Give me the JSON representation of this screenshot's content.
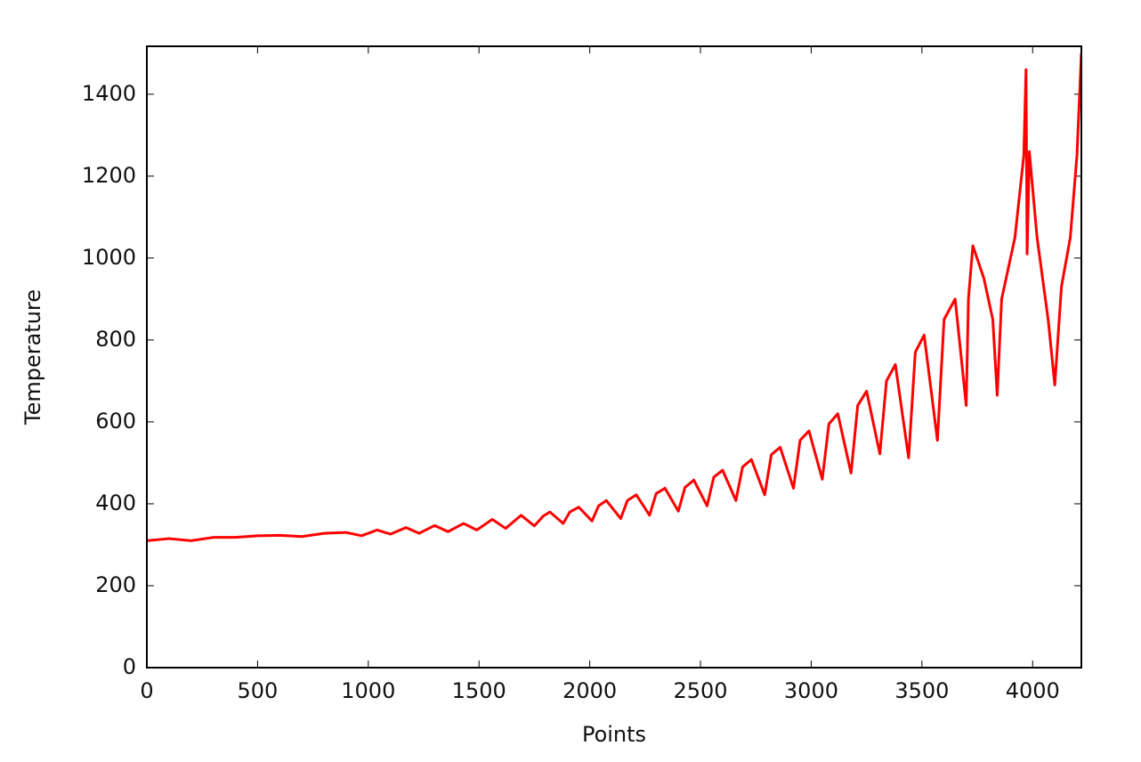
{
  "chart_data": {
    "type": "line",
    "x_label": "Points",
    "y_label": "Temperature",
    "x": [
      0,
      100,
      200,
      300,
      400,
      500,
      600,
      700,
      800,
      900,
      970,
      1040,
      1100,
      1170,
      1230,
      1300,
      1360,
      1430,
      1490,
      1560,
      1620,
      1690,
      1750,
      1790,
      1820,
      1880,
      1910,
      1950,
      2010,
      2040,
      2075,
      2140,
      2170,
      2210,
      2270,
      2300,
      2340,
      2400,
      2430,
      2470,
      2530,
      2560,
      2600,
      2660,
      2690,
      2730,
      2790,
      2820,
      2860,
      2920,
      2950,
      2990,
      3050,
      3080,
      3120,
      3180,
      3210,
      3250,
      3310,
      3340,
      3380,
      3440,
      3470,
      3510,
      3570,
      3600,
      3650,
      3700,
      3710,
      3730,
      3780,
      3820,
      3840,
      3860,
      3920,
      3960,
      3970,
      3975,
      3985,
      4020,
      4070,
      4100,
      4130,
      4170,
      4200,
      4220
    ],
    "series": [
      {
        "name": "Temperature",
        "color": "#ff0000",
        "values": [
          310,
          315,
          310,
          318,
          318,
          322,
          323,
          320,
          328,
          330,
          322,
          336,
          326,
          342,
          328,
          347,
          332,
          352,
          336,
          362,
          340,
          372,
          346,
          370,
          380,
          352,
          380,
          392,
          358,
          395,
          408,
          364,
          408,
          422,
          372,
          425,
          438,
          382,
          440,
          458,
          395,
          465,
          482,
          408,
          490,
          508,
          422,
          520,
          538,
          438,
          555,
          578,
          460,
          595,
          620,
          475,
          640,
          675,
          522,
          700,
          740,
          512,
          770,
          812,
          555,
          850,
          900,
          640,
          900,
          1030,
          950,
          850,
          665,
          900,
          1050,
          1250,
          1460,
          1010,
          1260,
          1050,
          850,
          690,
          930,
          1050,
          1250,
          1500
        ]
      }
    ],
    "xlim": [
      0,
      4220
    ],
    "ylim": [
      0,
      1517
    ],
    "xticks": [
      0,
      500,
      1000,
      1500,
      2000,
      2500,
      3000,
      3500,
      4000
    ],
    "yticks": [
      0,
      200,
      400,
      600,
      800,
      1000,
      1200,
      1400
    ]
  }
}
